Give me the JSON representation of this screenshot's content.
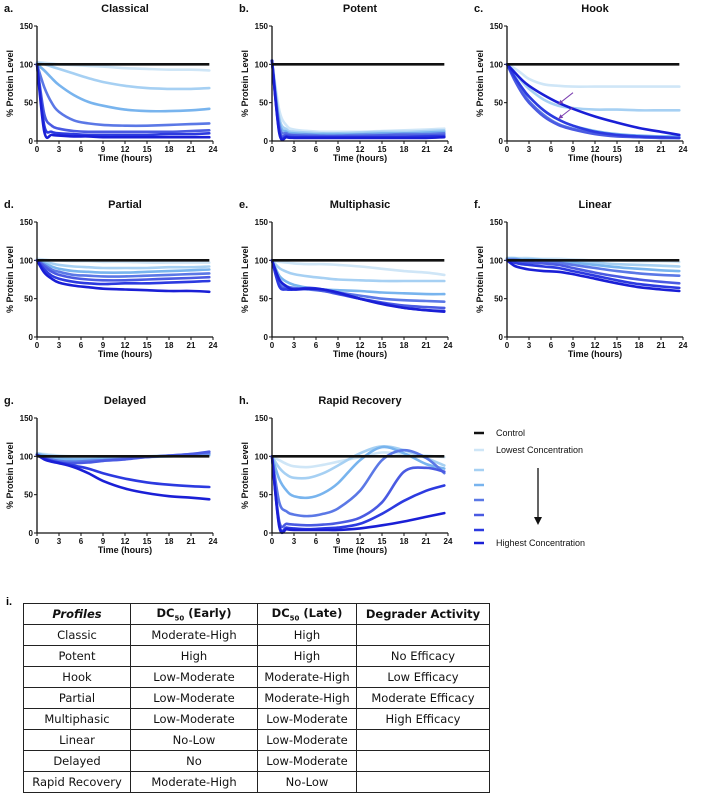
{
  "chart_data": {
    "shared": {
      "type": "line",
      "xlabel": "Time (hours)",
      "ylabel": "% Protein Level",
      "xlim": [
        0,
        24
      ],
      "ylim": [
        0,
        150
      ],
      "xticks": [
        0,
        3,
        6,
        9,
        12,
        15,
        18,
        21,
        24
      ],
      "yticks": [
        0,
        50,
        100,
        150
      ],
      "grid": false,
      "x": [
        0,
        1,
        2,
        3,
        5,
        7,
        9,
        12,
        15,
        18,
        21,
        23.5
      ],
      "control_value": 100,
      "control_color": "#111111",
      "series_colors": [
        "#cfe6f7",
        "#a6d0f3",
        "#78b4ee",
        "#5b78e6",
        "#4a5ae2",
        "#2c3ae0",
        "#1a1fd6"
      ]
    },
    "panels": [
      {
        "letter": "a.",
        "title": "Classical",
        "series": [
          [
            103,
            102,
            101,
            100,
            99,
            98,
            97,
            95,
            94,
            93,
            93,
            92
          ],
          [
            102,
            100,
            97,
            94,
            88,
            82,
            77,
            72,
            69,
            68,
            68,
            69
          ],
          [
            100,
            92,
            82,
            73,
            60,
            51,
            46,
            41,
            39,
            39,
            40,
            42
          ],
          [
            100,
            70,
            50,
            38,
            27,
            23,
            21,
            20,
            20,
            21,
            22,
            23
          ],
          [
            100,
            35,
            20,
            16,
            13,
            12,
            12,
            12,
            12,
            12,
            13,
            14
          ],
          [
            100,
            20,
            12,
            10,
            9,
            8,
            8,
            8,
            8,
            9,
            9,
            10
          ],
          [
            100,
            12,
            8,
            7,
            6,
            6,
            5,
            5,
            5,
            5,
            5,
            5
          ]
        ]
      },
      {
        "letter": "b.",
        "title": "Potent",
        "series": [
          [
            105,
            40,
            20,
            15,
            13,
            12,
            12,
            12,
            13,
            14,
            15,
            16
          ],
          [
            105,
            30,
            15,
            12,
            11,
            10,
            10,
            11,
            12,
            12,
            13,
            14
          ],
          [
            105,
            25,
            12,
            10,
            9,
            9,
            9,
            9,
            10,
            10,
            11,
            12
          ],
          [
            105,
            20,
            10,
            8,
            8,
            7,
            7,
            8,
            8,
            9,
            9,
            10
          ],
          [
            105,
            15,
            8,
            7,
            6,
            6,
            6,
            6,
            7,
            7,
            7,
            8
          ],
          [
            105,
            12,
            6,
            5,
            5,
            5,
            5,
            5,
            5,
            5,
            6,
            6
          ],
          [
            105,
            10,
            5,
            4,
            4,
            4,
            4,
            4,
            4,
            4,
            4,
            5
          ]
        ]
      },
      {
        "letter": "c.",
        "title": "Hook",
        "series": [
          [
            100,
            95,
            88,
            81,
            74,
            72,
            71,
            71,
            71,
            71,
            71,
            71
          ],
          [
            100,
            90,
            78,
            68,
            54,
            46,
            43,
            41,
            41,
            40,
            40,
            40
          ],
          [
            100,
            85,
            70,
            58,
            40,
            28,
            20,
            13,
            9,
            7,
            6,
            6
          ],
          [
            100,
            82,
            66,
            52,
            34,
            22,
            16,
            10,
            7,
            5,
            4,
            4
          ],
          [
            100,
            80,
            63,
            50,
            32,
            21,
            15,
            9,
            6,
            5,
            4,
            4
          ],
          [
            100,
            84,
            70,
            58,
            40,
            28,
            20,
            12,
            8,
            6,
            5,
            4
          ],
          [
            100,
            90,
            80,
            72,
            60,
            50,
            42,
            32,
            24,
            17,
            12,
            8
          ]
        ],
        "annotations": [
          {
            "type": "arrow",
            "from": [
              9,
              63
            ],
            "to": [
              7,
              48
            ],
            "color": "#7b3fb0"
          },
          {
            "type": "arrow",
            "from": [
              9,
              44
            ],
            "to": [
              7,
              29
            ],
            "color": "#7b3fb0"
          }
        ]
      },
      {
        "letter": "d.",
        "title": "Partial",
        "series": [
          [
            102,
            101,
            100,
            100,
            99,
            99,
            98,
            98,
            97,
            97,
            97,
            97
          ],
          [
            100,
            98,
            96,
            94,
            92,
            91,
            90,
            90,
            90,
            91,
            91,
            92
          ],
          [
            100,
            96,
            92,
            89,
            86,
            85,
            84,
            84,
            85,
            86,
            87,
            88
          ],
          [
            100,
            94,
            88,
            85,
            81,
            80,
            79,
            79,
            80,
            81,
            82,
            83
          ],
          [
            100,
            92,
            85,
            81,
            77,
            75,
            74,
            74,
            75,
            76,
            77,
            78
          ],
          [
            100,
            88,
            80,
            76,
            72,
            70,
            69,
            70,
            70,
            71,
            72,
            73
          ],
          [
            100,
            84,
            76,
            71,
            67,
            65,
            63,
            62,
            61,
            60,
            60,
            59
          ]
        ]
      },
      {
        "letter": "e.",
        "title": "Multiphasic",
        "series": [
          [
            100,
            98,
            97,
            96,
            95,
            95,
            94,
            92,
            89,
            86,
            84,
            81
          ],
          [
            100,
            90,
            85,
            82,
            79,
            77,
            75,
            74,
            73,
            73,
            73,
            73
          ],
          [
            100,
            80,
            72,
            68,
            64,
            62,
            61,
            60,
            58,
            57,
            56,
            56
          ],
          [
            100,
            72,
            66,
            64,
            62,
            60,
            58,
            54,
            50,
            48,
            47,
            46
          ],
          [
            100,
            68,
            64,
            63,
            63,
            60,
            56,
            50,
            45,
            41,
            39,
            38
          ],
          [
            100,
            66,
            62,
            62,
            64,
            62,
            57,
            50,
            44,
            38,
            35,
            34
          ],
          [
            100,
            75,
            66,
            62,
            63,
            62,
            58,
            50,
            43,
            38,
            35,
            33
          ]
        ]
      },
      {
        "letter": "f.",
        "title": "Linear",
        "series": [
          [
            103,
            103,
            103,
            103,
            102,
            102,
            101,
            100,
            100,
            99,
            99,
            98
          ],
          [
            103,
            103,
            102,
            102,
            101,
            100,
            99,
            97,
            95,
            94,
            93,
            92
          ],
          [
            102,
            102,
            101,
            101,
            100,
            99,
            97,
            94,
            91,
            89,
            87,
            86
          ],
          [
            101,
            101,
            100,
            100,
            99,
            97,
            94,
            90,
            86,
            83,
            81,
            80
          ],
          [
            100,
            99,
            98,
            97,
            96,
            94,
            90,
            84,
            79,
            75,
            72,
            70
          ],
          [
            100,
            97,
            95,
            94,
            92,
            90,
            86,
            80,
            74,
            69,
            66,
            64
          ],
          [
            100,
            93,
            90,
            88,
            86,
            85,
            82,
            76,
            70,
            65,
            62,
            60
          ]
        ]
      },
      {
        "letter": "g.",
        "title": "Delayed",
        "series": [
          [
            104,
            103,
            102,
            101,
            100,
            100,
            100,
            100,
            100,
            100,
            101,
            101
          ],
          [
            104,
            102,
            101,
            100,
            99,
            99,
            99,
            100,
            100,
            101,
            101,
            102
          ],
          [
            103,
            101,
            99,
            97,
            96,
            96,
            97,
            98,
            99,
            100,
            101,
            102
          ],
          [
            102,
            99,
            96,
            94,
            93,
            94,
            95,
            97,
            99,
            101,
            103,
            104
          ],
          [
            102,
            98,
            94,
            92,
            91,
            92,
            94,
            96,
            99,
            101,
            103,
            106
          ],
          [
            102,
            97,
            94,
            92,
            88,
            84,
            78,
            71,
            66,
            63,
            61,
            60
          ],
          [
            102,
            96,
            93,
            91,
            86,
            78,
            68,
            58,
            52,
            48,
            46,
            44
          ]
        ]
      },
      {
        "letter": "h.",
        "title": "Rapid Recovery",
        "series": [
          [
            100,
            95,
            90,
            87,
            86,
            89,
            93,
            99,
            105,
            103,
            101,
            99
          ],
          [
            100,
            85,
            76,
            72,
            72,
            78,
            88,
            104,
            113,
            108,
            98,
            88
          ],
          [
            100,
            70,
            55,
            48,
            46,
            52,
            65,
            95,
            112,
            104,
            90,
            84
          ],
          [
            100,
            40,
            28,
            24,
            22,
            25,
            32,
            55,
            95,
            108,
            98,
            78
          ],
          [
            100,
            15,
            12,
            11,
            10,
            11,
            13,
            20,
            40,
            80,
            85,
            80
          ],
          [
            100,
            10,
            7,
            6,
            5,
            6,
            7,
            12,
            25,
            42,
            55,
            62
          ],
          [
            100,
            8,
            5,
            4,
            4,
            4,
            4,
            6,
            10,
            15,
            21,
            26
          ]
        ]
      }
    ],
    "legend": {
      "control": "Control",
      "lowest": "Lowest Concentration",
      "highest": "Highest Concentration",
      "arrow_direction": "down"
    }
  },
  "table": {
    "label": "i.",
    "headers": [
      "Profiles",
      "DC",
      "50",
      " (Early)",
      "DC",
      "50",
      " (Late)",
      "Degrader Activity"
    ],
    "rows": [
      [
        "Classic",
        "Moderate-High",
        "High",
        ""
      ],
      [
        "Potent",
        "High",
        "High",
        "No Efficacy"
      ],
      [
        "Hook",
        "Low-Moderate",
        "Moderate-High",
        "Low Efficacy"
      ],
      [
        "Partial",
        "Low-Moderate",
        "Moderate-High",
        "Moderate Efficacy"
      ],
      [
        "Multiphasic",
        "Low-Moderate",
        "Low-Moderate",
        "High Efficacy"
      ],
      [
        "Linear",
        "No-Low",
        "Low-Moderate",
        ""
      ],
      [
        "Delayed",
        "No",
        "Low-Moderate",
        ""
      ],
      [
        "Rapid Recovery",
        "Moderate-High",
        "No-Low",
        ""
      ]
    ]
  }
}
